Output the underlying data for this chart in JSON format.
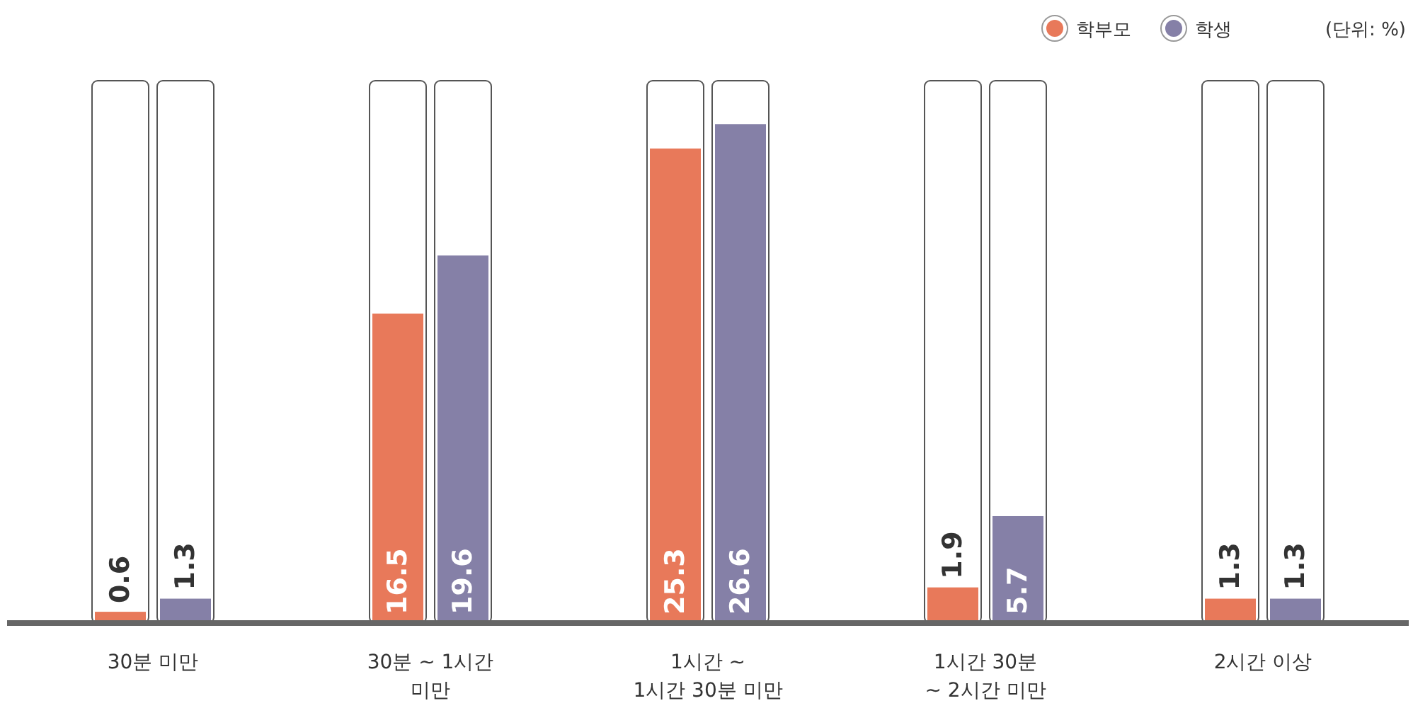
{
  "chart_data": {
    "type": "bar",
    "categories": [
      "30분 미만",
      "30분 ~ 1시간\n미만",
      "1시간 ~\n1시간 30분 미만",
      "1시간 30분\n~ 2시간 미만",
      "2시간 이상"
    ],
    "series": [
      {
        "name": "학부모",
        "color": "#e8795a",
        "values": [
          0.6,
          16.5,
          25.3,
          1.9,
          1.3
        ]
      },
      {
        "name": "학생",
        "color": "#8580a7",
        "values": [
          1.3,
          19.6,
          26.6,
          5.7,
          1.3
        ]
      }
    ],
    "data_labels": true,
    "legend": "top right",
    "annotations": [
      "(단위: %)"
    ]
  }
}
